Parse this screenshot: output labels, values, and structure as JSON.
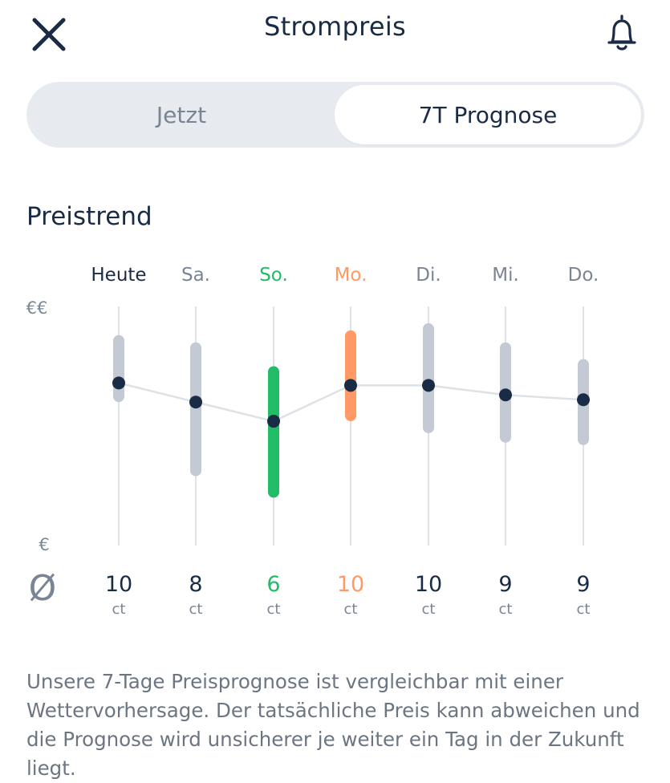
{
  "header": {
    "title": "Strompreis",
    "close_icon": "close-icon",
    "bell_icon": "bell-icon"
  },
  "tabs": [
    {
      "label": "Jetzt",
      "active": false
    },
    {
      "label": "7T Prognose",
      "active": true
    }
  ],
  "section_title": "Preistrend",
  "colors": {
    "text_dark": "#1a2b45",
    "muted": "#7a8594",
    "bar_default": "#c4cad3",
    "cheapest": "#22bb66",
    "most_expensive": "#ff9a66",
    "gridline": "#dfe3e8",
    "trend_line": "#dde2e7",
    "dot": "#1a2b45"
  },
  "chart_data": {
    "type": "line",
    "y_axis_top_label": "€€",
    "y_axis_bottom_label": "€",
    "average_symbol": "Ø",
    "unit": "ct",
    "days": [
      {
        "label": "Heute",
        "avg": 10,
        "low": 0.6,
        "high": 0.88,
        "mid": 0.68,
        "highlight": "today"
      },
      {
        "label": "Sa.",
        "avg": 8,
        "low": 0.29,
        "high": 0.85,
        "mid": 0.6,
        "highlight": "none"
      },
      {
        "label": "So.",
        "avg": 6,
        "low": 0.2,
        "high": 0.75,
        "mid": 0.52,
        "highlight": "cheapest"
      },
      {
        "label": "Mo.",
        "avg": 10,
        "low": 0.52,
        "high": 0.9,
        "mid": 0.67,
        "highlight": "most_expensive"
      },
      {
        "label": "Di.",
        "avg": 10,
        "low": 0.47,
        "high": 0.93,
        "mid": 0.67,
        "highlight": "none"
      },
      {
        "label": "Mi.",
        "avg": 9,
        "low": 0.43,
        "high": 0.85,
        "mid": 0.63,
        "highlight": "none"
      },
      {
        "label": "Do.",
        "avg": 9,
        "low": 0.42,
        "high": 0.78,
        "mid": 0.61,
        "highlight": "none"
      }
    ]
  },
  "description": "Unsere 7-Tage Preisprognose ist vergleichbar mit einer Wettervorhersage. Der tatsächliche Preis kann abweichen und die Prognose wird unsicherer je weiter ein Tag in der Zukunft liegt."
}
